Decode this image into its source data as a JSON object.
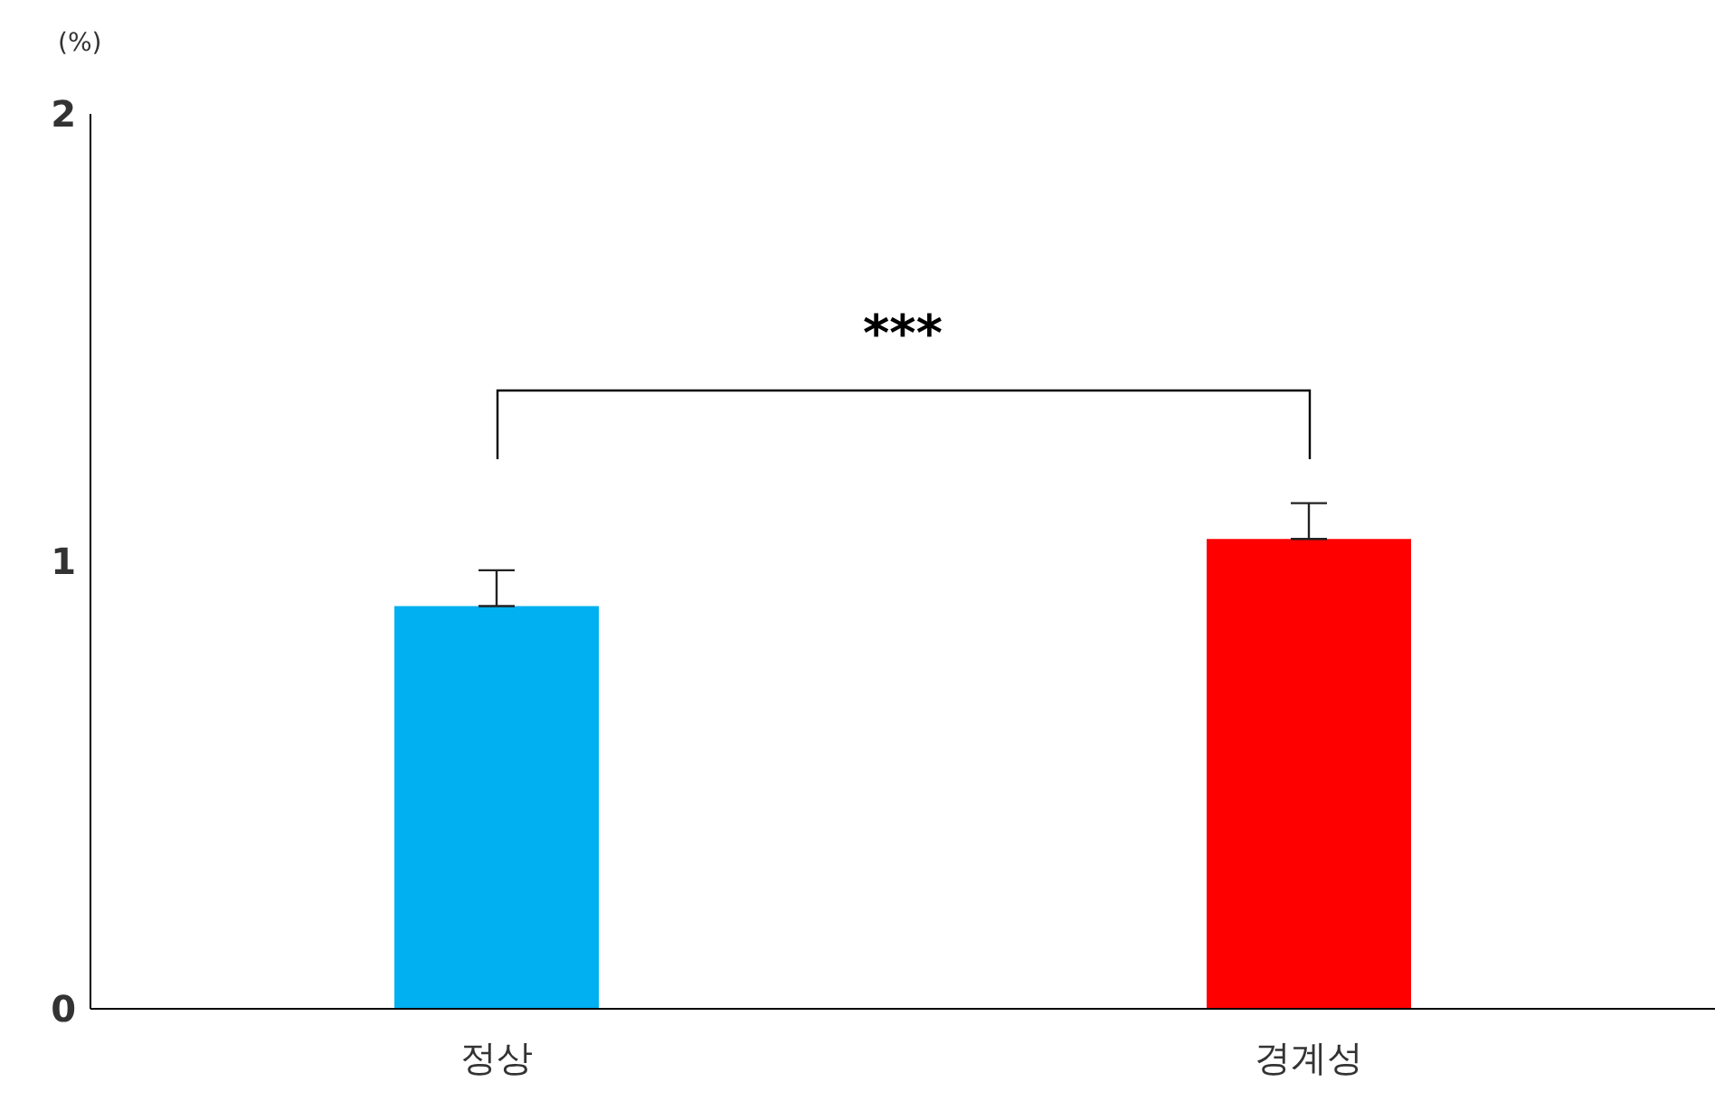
{
  "chart_data": {
    "type": "bar",
    "ylabel": "(%)",
    "categories": [
      "정상",
      "경계성"
    ],
    "values": [
      0.9,
      1.05
    ],
    "colors": [
      "#00b0f0",
      "#ff0000"
    ],
    "errors": [
      0.08,
      0.08
    ],
    "ylim": [
      0,
      2
    ],
    "yticks": [
      0,
      1,
      2
    ],
    "annotations": [
      "***"
    ]
  }
}
